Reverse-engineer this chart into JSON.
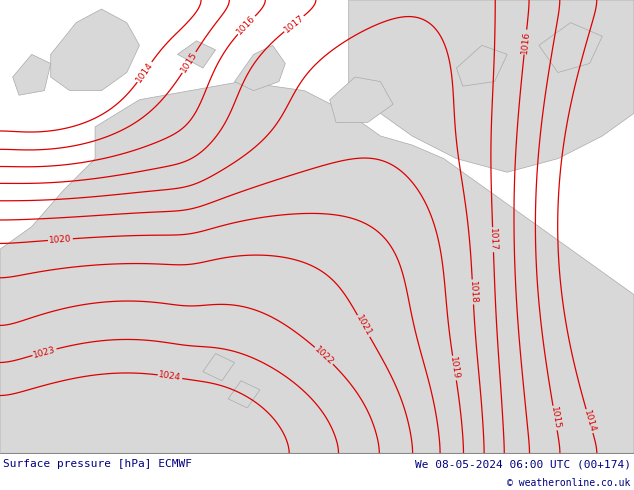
{
  "title_left": "Surface pressure [hPa] ECMWF",
  "title_right": "We 08-05-2024 06:00 UTC (00+174)",
  "copyright": "© weatheronline.co.uk",
  "sea_color": "#c8f0a0",
  "land_color": "#d8d8d8",
  "coast_color": "#aaaaaa",
  "contour_color": "#dd0000",
  "footer_text_color": "#000080",
  "contour_levels": [
    1014,
    1015,
    1016,
    1017,
    1018,
    1019,
    1020,
    1021,
    1022,
    1023,
    1024
  ],
  "figsize": [
    6.34,
    4.9
  ],
  "dpi": 100
}
